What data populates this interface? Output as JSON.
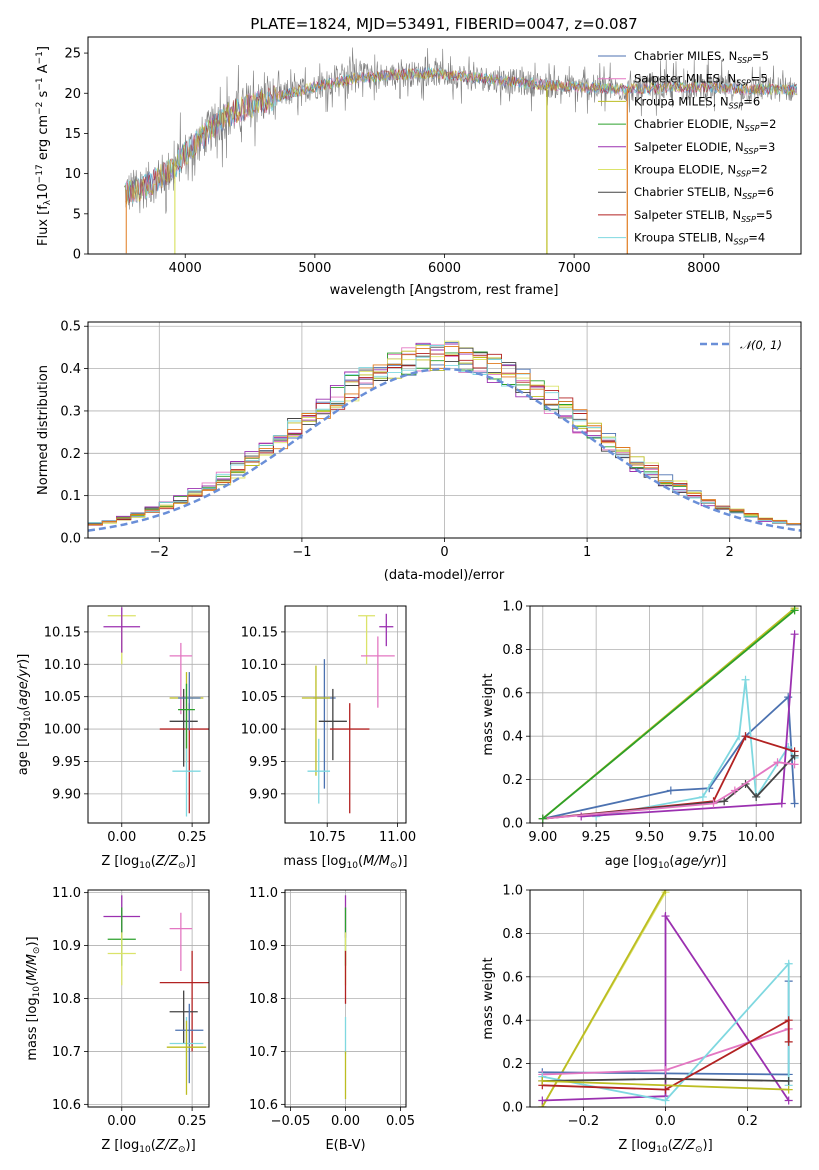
{
  "figure": {
    "title": "PLATE=1824, MJD=53491, FIBERID=0047, z=0.087"
  },
  "model_colors": {
    "Chabrier MILES": "#4c72b0",
    "Salpeter MILES": "#e377c2",
    "Kroupa MILES": "#bcbd22",
    "Chabrier ELODIE": "#2ca02c",
    "Salpeter ELODIE": "#9b30b0",
    "Kroupa ELODIE": "#dbe36a",
    "Chabrier STELIB": "#444444",
    "Salpeter STELIB": "#b22222",
    "Kroupa STELIB": "#7fd8e0"
  },
  "extra_colors": {
    "data_spectrum": "#7f7f7f",
    "blue": "#6a8fd8",
    "orange": "#e07b1f",
    "red": "#c0392b",
    "pink": "#e88bc4",
    "grid": "#b0b0b0"
  },
  "chart_data": [
    {
      "id": "spectrum",
      "type": "line",
      "title": "PLATE=1824, MJD=53491, FIBERID=0047, z=0.087",
      "xlabel": "wavelength [Angstrom, rest frame]",
      "ylabel": "Flux [f",
      "xlim": [
        3250,
        8750
      ],
      "ylim": [
        0,
        27
      ],
      "xticks": [
        4000,
        5000,
        6000,
        7000,
        8000
      ],
      "yticks": [
        0,
        5,
        10,
        15,
        20,
        25
      ],
      "grid": false,
      "legend_position": "top-right",
      "legend": [
        {
          "model": "Chabrier MILES",
          "n": "5"
        },
        {
          "model": "Salpeter MILES",
          "n": "5"
        },
        {
          "model": "Kroupa MILES",
          "n": "6"
        },
        {
          "model": "Chabrier ELODIE",
          "n": "2"
        },
        {
          "model": "Salpeter ELODIE",
          "n": "3"
        },
        {
          "model": "Kroupa ELODIE",
          "n": "2"
        },
        {
          "model": "Chabrier STELIB",
          "n": "6"
        },
        {
          "model": "Salpeter STELIB",
          "n": "5"
        },
        {
          "model": "Kroupa STELIB",
          "n": "4"
        }
      ],
      "continuum": {
        "x": [
          3500,
          3600,
          3700,
          3800,
          3900,
          4000,
          4100,
          4200,
          4300,
          4500,
          4700,
          5000,
          5300,
          5600,
          5900,
          6200,
          6500,
          6800,
          7100,
          7400,
          7700,
          8000,
          8300
        ],
        "y": [
          7.5,
          7.8,
          8.5,
          9.5,
          10.5,
          12.5,
          14,
          15.5,
          17,
          18.5,
          19.5,
          20.8,
          21.8,
          22.3,
          22.5,
          22,
          21.5,
          21,
          20.7,
          20.5,
          20.7,
          20.8,
          20.5
        ]
      },
      "drops": [
        {
          "x": 6790,
          "color": "#bcbd22"
        },
        {
          "x": 7410,
          "color": "#e07b1f"
        },
        {
          "x": 3920,
          "color": "#dbe36a"
        }
      ]
    },
    {
      "id": "residual-histogram",
      "type": "histogram",
      "xlabel": "(data-model)/error",
      "ylabel": "Normed distribution",
      "xlim": [
        -2.5,
        2.5
      ],
      "ylim": [
        0,
        0.51
      ],
      "xticks": [
        -2,
        -1,
        0,
        1,
        2
      ],
      "yticks": [
        0.0,
        0.1,
        0.2,
        0.3,
        0.4,
        0.5
      ],
      "grid": true,
      "legend_position": "top-right",
      "legend": "𝒩(0, 1)",
      "bin_width": 0.1,
      "reference_curve": "normal(0,1)"
    },
    {
      "id": "age-vs-z",
      "type": "errorbar",
      "xlabel": "Z [log",
      "ylabel": "age  [log",
      "xlim": [
        -0.12,
        0.31
      ],
      "ylim": [
        9.855,
        10.19
      ],
      "xticks": [
        0.0,
        0.25
      ],
      "xtick_labels": [
        "0.00",
        "0.25"
      ],
      "yticks": [
        9.9,
        9.95,
        10.0,
        10.05,
        10.1,
        10.15
      ],
      "ytick_labels": [
        "9.90",
        "9.95",
        "10.00",
        "10.05",
        "10.10",
        "10.15"
      ],
      "grid": true,
      "points": [
        {
          "model": "Kroupa ELODIE",
          "x": 0.0,
          "y": 10.175,
          "xerr": 0.05,
          "yerr": [
            0.075,
            0.0
          ]
        },
        {
          "model": "Salpeter ELODIE",
          "x": 0.0,
          "y": 10.158,
          "xerr": 0.065,
          "yerr": [
            0.04,
            0.03
          ]
        },
        {
          "model": "Salpeter MILES",
          "x": 0.21,
          "y": 10.113,
          "xerr": 0.04,
          "yerr": [
            0.09,
            0.02
          ]
        },
        {
          "model": "Kroupa MILES",
          "x": 0.23,
          "y": 10.048,
          "xerr": 0.06,
          "yerr": [
            0.1,
            0.04
          ]
        },
        {
          "model": "Chabrier STELIB",
          "x": 0.22,
          "y": 10.012,
          "xerr": 0.05,
          "yerr": [
            0.07,
            0.05
          ]
        },
        {
          "model": "Salpeter STELIB",
          "x": 0.24,
          "y": 10.0,
          "xerr": 0.105,
          "yerr": [
            0.13,
            0.04
          ]
        },
        {
          "model": "Kroupa STELIB",
          "x": 0.23,
          "y": 9.935,
          "xerr": 0.05,
          "yerr": [
            0.07,
            0.08
          ]
        },
        {
          "model": "Chabrier MILES",
          "x": 0.24,
          "y": 10.048,
          "xerr": 0.04,
          "yerr": [
            0.05,
            0.04
          ]
        },
        {
          "model": "Chabrier ELODIE",
          "x": 0.23,
          "y": 10.03,
          "xerr": 0.03,
          "yerr": [
            0.06,
            0.04
          ]
        }
      ]
    },
    {
      "id": "age-vs-mass",
      "type": "errorbar",
      "xlabel": "mass [log",
      "ylabel": "",
      "xlim": [
        10.6,
        11.03
      ],
      "ylim": [
        9.855,
        10.19
      ],
      "xticks": [
        10.75,
        11.0
      ],
      "xtick_labels": [
        "10.75",
        "11.00"
      ],
      "yticks": [
        9.9,
        9.95,
        10.0,
        10.05,
        10.1,
        10.15
      ],
      "ytick_labels": [
        "9.90",
        "9.95",
        "10.00",
        "10.05",
        "10.10",
        "10.15"
      ],
      "grid": true,
      "points": [
        {
          "model": "Kroupa ELODIE",
          "x": 10.89,
          "y": 10.175,
          "xerr": 0.03,
          "yerr": [
            0.075,
            0.0
          ]
        },
        {
          "model": "Salpeter ELODIE",
          "x": 10.96,
          "y": 10.158,
          "xerr": 0.025,
          "yerr": [
            0.03,
            0.02
          ]
        },
        {
          "model": "Salpeter MILES",
          "x": 10.93,
          "y": 10.113,
          "xerr": 0.06,
          "yerr": [
            0.08,
            0.03
          ]
        },
        {
          "model": "Chabrier MILES",
          "x": 10.74,
          "y": 10.048,
          "xerr": 0.04,
          "yerr": [
            0.14,
            0.06
          ]
        },
        {
          "model": "Kroupa MILES",
          "x": 10.71,
          "y": 10.048,
          "xerr": 0.05,
          "yerr": [
            0.12,
            0.05
          ]
        },
        {
          "model": "Chabrier STELIB",
          "x": 10.77,
          "y": 10.012,
          "xerr": 0.05,
          "yerr": [
            0.06,
            0.05
          ]
        },
        {
          "model": "Salpeter STELIB",
          "x": 10.83,
          "y": 10.0,
          "xerr": 0.07,
          "yerr": [
            0.13,
            0.04
          ]
        },
        {
          "model": "Kroupa STELIB",
          "x": 10.72,
          "y": 9.935,
          "xerr": 0.04,
          "yerr": [
            0.05,
            0.05
          ]
        }
      ]
    },
    {
      "id": "weight-vs-age",
      "type": "line",
      "xlabel": "age  [log",
      "ylabel": "mass weight",
      "xlim": [
        8.94,
        10.21
      ],
      "ylim": [
        0,
        1.0
      ],
      "xticks": [
        9.0,
        9.25,
        9.5,
        9.75,
        10.0
      ],
      "xtick_labels": [
        "9.00",
        "9.25",
        "9.50",
        "9.75",
        "10.00"
      ],
      "yticks": [
        0.0,
        0.2,
        0.4,
        0.6,
        0.8,
        1.0
      ],
      "grid": true,
      "series": [
        {
          "model": "Kroupa ELODIE",
          "x": [
            9.0,
            10.18
          ],
          "y": [
            0.02,
            0.98
          ]
        },
        {
          "model": "Kroupa MILES",
          "x": [
            9.0,
            10.18
          ],
          "y": [
            0.02,
            0.99
          ]
        },
        {
          "model": "Chabrier MILES",
          "x": [
            9.0,
            9.6,
            9.78,
            9.95,
            10.15,
            10.18
          ],
          "y": [
            0.02,
            0.15,
            0.16,
            0.4,
            0.58,
            0.09
          ]
        },
        {
          "model": "Kroupa STELIB",
          "x": [
            9.25,
            9.75,
            9.92,
            9.95,
            10.0,
            10.15,
            10.18
          ],
          "y": [
            0.03,
            0.12,
            0.4,
            0.66,
            0.12,
            0.35,
            0.3
          ]
        },
        {
          "model": "Salpeter ELODIE",
          "x": [
            9.18,
            10.12,
            10.18
          ],
          "y": [
            0.03,
            0.09,
            0.87
          ]
        },
        {
          "model": "Salpeter STELIB",
          "x": [
            9.0,
            9.8,
            9.95,
            10.18
          ],
          "y": [
            0.02,
            0.1,
            0.4,
            0.33
          ]
        },
        {
          "model": "Chabrier STELIB",
          "x": [
            9.0,
            9.85,
            9.95,
            10.0,
            10.18
          ],
          "y": [
            0.02,
            0.1,
            0.18,
            0.12,
            0.31
          ]
        },
        {
          "model": "Salpeter MILES",
          "x": [
            9.0,
            9.8,
            9.9,
            10.1,
            10.18
          ],
          "y": [
            0.02,
            0.09,
            0.15,
            0.28,
            0.27
          ]
        },
        {
          "model": "Chabrier ELODIE",
          "x": [
            9.0,
            10.18
          ],
          "y": [
            0.02,
            0.98
          ]
        }
      ]
    },
    {
      "id": "mass-vs-z",
      "type": "errorbar",
      "xlabel": "Z [log",
      "ylabel": "mass [log",
      "xlim": [
        -0.12,
        0.31
      ],
      "ylim": [
        10.595,
        11.005
      ],
      "xticks": [
        0.0,
        0.25
      ],
      "xtick_labels": [
        "0.00",
        "0.25"
      ],
      "yticks": [
        10.6,
        10.7,
        10.8,
        10.9,
        11.0
      ],
      "ytick_labels": [
        "10.6",
        "10.7",
        "10.8",
        "10.9",
        "11.0"
      ],
      "grid": true,
      "points": [
        {
          "model": "Salpeter ELODIE",
          "x": 0.0,
          "y": 10.955,
          "xerr": 0.065,
          "yerr": [
            0.04,
            0.04
          ]
        },
        {
          "model": "Chabrier ELODIE",
          "x": 0.0,
          "y": 10.912,
          "xerr": 0.05,
          "yerr": [
            0.05,
            0.06
          ]
        },
        {
          "model": "Kroupa ELODIE",
          "x": 0.0,
          "y": 10.885,
          "xerr": 0.05,
          "yerr": [
            0.06,
            0.04
          ]
        },
        {
          "model": "Salpeter MILES",
          "x": 0.21,
          "y": 10.932,
          "xerr": 0.04,
          "yerr": [
            0.08,
            0.03
          ]
        },
        {
          "model": "Salpeter STELIB",
          "x": 0.25,
          "y": 10.83,
          "xerr": 0.115,
          "yerr": [
            0.13,
            0.06
          ]
        },
        {
          "model": "Chabrier STELIB",
          "x": 0.22,
          "y": 10.775,
          "xerr": 0.05,
          "yerr": [
            0.06,
            0.04
          ]
        },
        {
          "model": "Chabrier MILES",
          "x": 0.24,
          "y": 10.74,
          "xerr": 0.05,
          "yerr": [
            0.1,
            0.05
          ]
        },
        {
          "model": "Kroupa STELIB",
          "x": 0.23,
          "y": 10.715,
          "xerr": 0.06,
          "yerr": [
            0.05,
            0.05
          ]
        },
        {
          "model": "Kroupa MILES",
          "x": 0.23,
          "y": 10.708,
          "xerr": 0.07,
          "yerr": [
            0.09,
            0.05
          ]
        }
      ]
    },
    {
      "id": "mass-vs-ebv",
      "type": "errorbar",
      "xlabel": "E(B-V)",
      "ylabel": "",
      "xlim": [
        -0.055,
        0.055
      ],
      "ylim": [
        10.595,
        11.005
      ],
      "xticks": [
        -0.05,
        0.0,
        0.05
      ],
      "xtick_labels": [
        "−0.05",
        "0.00",
        "0.05"
      ],
      "yticks": [
        10.6,
        10.7,
        10.8,
        10.9,
        11.0
      ],
      "ytick_labels": [
        "10.6",
        "10.7",
        "10.8",
        "10.9",
        "11.0"
      ],
      "grid": true,
      "points": [
        {
          "model": "Salpeter ELODIE",
          "x": 0.0,
          "y": 10.955,
          "xerr": 0.0,
          "yerr": [
            0.04,
            0.04
          ]
        },
        {
          "model": "Chabrier ELODIE",
          "x": 0.0,
          "y": 10.912,
          "xerr": 0.0,
          "yerr": [
            0.05,
            0.06
          ]
        },
        {
          "model": "Kroupa ELODIE",
          "x": 0.0,
          "y": 10.885,
          "xerr": 0.0,
          "yerr": [
            0.06,
            0.04
          ]
        },
        {
          "model": "Salpeter STELIB",
          "x": 0.0,
          "y": 10.83,
          "xerr": 0.0,
          "yerr": [
            0.04,
            0.06
          ]
        },
        {
          "model": "Kroupa STELIB",
          "x": 0.0,
          "y": 10.715,
          "xerr": 0.0,
          "yerr": [
            0.02,
            0.05
          ]
        },
        {
          "model": "Kroupa MILES",
          "x": 0.0,
          "y": 10.7,
          "xerr": 0.0,
          "yerr": [
            0.09,
            0.0
          ]
        }
      ]
    },
    {
      "id": "weight-vs-z",
      "type": "line",
      "xlabel": "Z [log",
      "ylabel": "mass weight",
      "xlim": [
        -0.33,
        0.33
      ],
      "ylim": [
        0,
        1.0
      ],
      "xticks": [
        -0.2,
        0.0,
        0.2
      ],
      "xtick_labels": [
        "−0.2",
        "0.0",
        "0.2"
      ],
      "yticks": [
        0.0,
        0.2,
        0.4,
        0.6,
        0.8,
        1.0
      ],
      "grid": true,
      "series": [
        {
          "model": "Kroupa ELODIE",
          "x": [
            -0.3,
            0.0
          ],
          "y": [
            0.0,
            0.99
          ]
        },
        {
          "model": "Kroupa MILES",
          "x": [
            -0.3,
            0.0
          ],
          "y": [
            0.0,
            1.0
          ]
        },
        {
          "model": "Salpeter ELODIE",
          "x": [
            -0.3,
            0.0,
            0.0,
            0.3
          ],
          "y": [
            0.03,
            0.05,
            0.88,
            0.03
          ]
        },
        {
          "model": "Chabrier MILES",
          "x": [
            -0.3,
            0.3,
            0.3
          ],
          "y": [
            0.16,
            0.15,
            0.58
          ]
        },
        {
          "model": "Salpeter MILES",
          "x": [
            -0.3,
            0.0,
            0.3
          ],
          "y": [
            0.15,
            0.17,
            0.36
          ]
        },
        {
          "model": "Kroupa STELIB",
          "x": [
            -0.3,
            0.0,
            0.3,
            0.3
          ],
          "y": [
            0.14,
            0.03,
            0.66,
            0.1
          ]
        },
        {
          "model": "Chabrier STELIB",
          "x": [
            -0.3,
            0.0,
            0.3
          ],
          "y": [
            0.12,
            0.13,
            0.12
          ]
        },
        {
          "model": "Salpeter STELIB",
          "x": [
            -0.3,
            0.0,
            0.3,
            0.3
          ],
          "y": [
            0.1,
            0.08,
            0.4,
            0.3
          ]
        },
        {
          "model": "Kroupa MILES",
          "x": [
            -0.3,
            0.3
          ],
          "y": [
            0.12,
            0.08
          ]
        }
      ]
    }
  ]
}
